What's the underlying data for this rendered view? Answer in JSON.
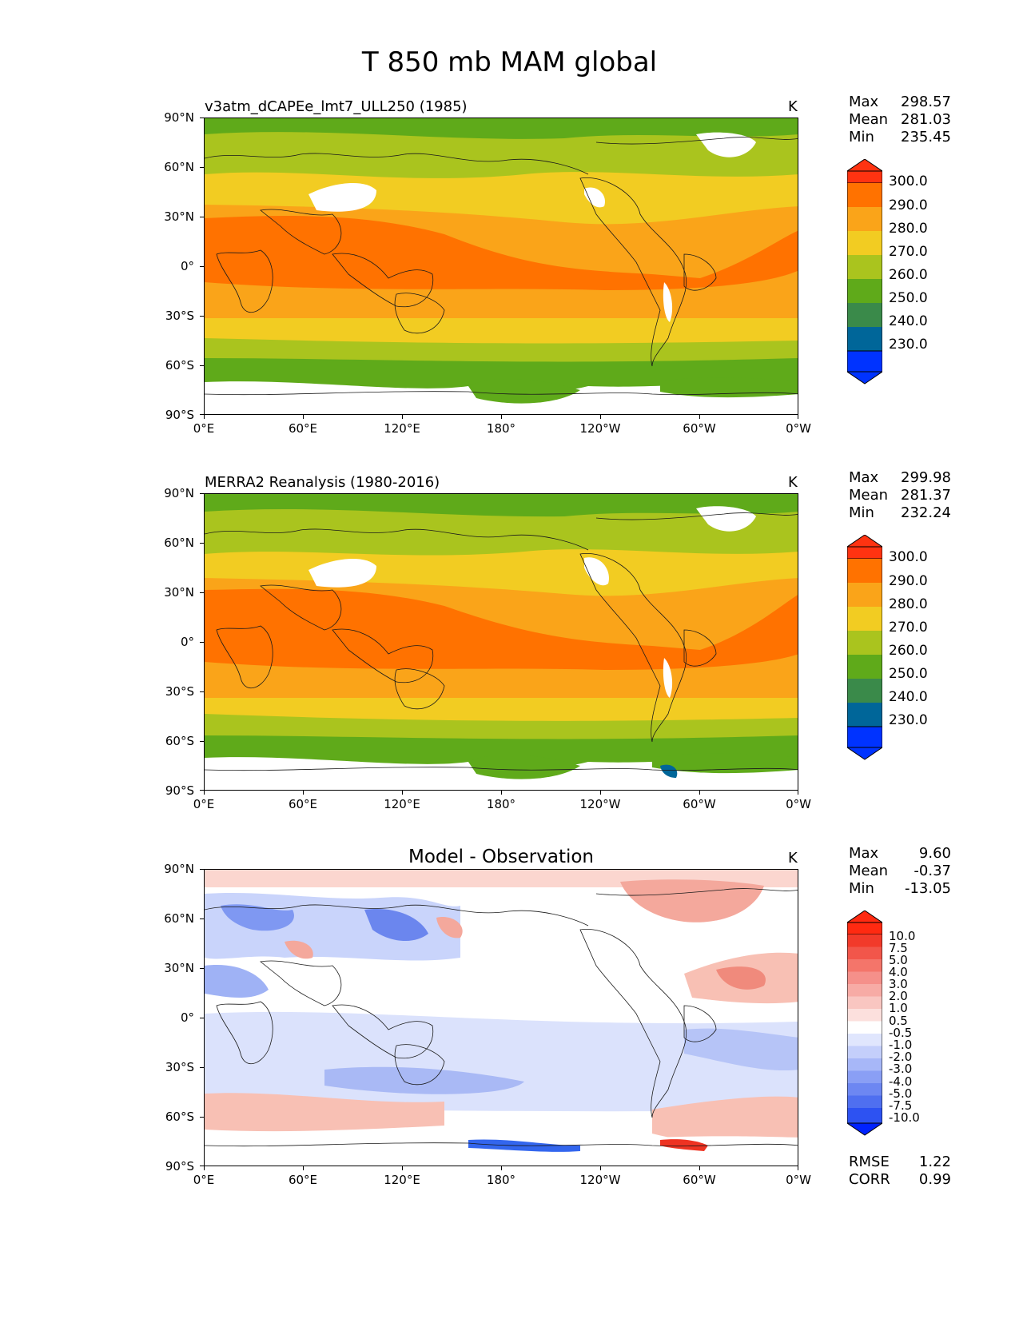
{
  "title": "T 850 mb MAM global",
  "colors": {
    "c220": "#0033ff",
    "c230": "#006699",
    "c240": "#3a8a4a",
    "c250": "#5faa1a",
    "c260": "#aac41e",
    "c270": "#f2cc22",
    "c280": "#faa419",
    "c290": "#ff7200",
    "c300": "#ff3311",
    "missing": "#ffffff",
    "coast": "#1a1a1a"
  },
  "axes": {
    "yticks": [
      "90°N",
      "60°N",
      "30°N",
      "0°",
      "30°S",
      "60°S",
      "90°S"
    ],
    "xticks": [
      "0°E",
      "60°E",
      "120°E",
      "180°",
      "120°W",
      "60°W",
      "0°W"
    ]
  },
  "panels": [
    {
      "id": "model",
      "title": "v3atm_dCAPEe_lmt7_ULL250 (1985)",
      "units": "K",
      "stats": {
        "max_label": "Max",
        "max": "298.57",
        "mean_label": "Mean",
        "mean": "281.03",
        "min_label": "Min",
        "min": "235.45"
      },
      "colorbar_levels": [
        "300.0",
        "290.0",
        "280.0",
        "270.0",
        "260.0",
        "250.0",
        "240.0",
        "230.0"
      ]
    },
    {
      "id": "obs",
      "title": "MERRA2 Reanalysis (1980-2016)",
      "units": "K",
      "stats": {
        "max_label": "Max",
        "max": "299.98",
        "mean_label": "Mean",
        "mean": "281.37",
        "min_label": "Min",
        "min": "232.24"
      },
      "colorbar_levels": [
        "300.0",
        "290.0",
        "280.0",
        "270.0",
        "260.0",
        "250.0",
        "240.0",
        "230.0"
      ]
    },
    {
      "id": "diff",
      "title": "Model - Observation",
      "units": "K",
      "stats": {
        "max_label": "Max",
        "max": "9.60",
        "mean_label": "Mean",
        "mean": "-0.37",
        "min_label": "Min",
        "min": "-13.05"
      },
      "colorbar_levels": [
        "10.0",
        "7.5",
        "5.0",
        "4.0",
        "3.0",
        "2.0",
        "1.0",
        "0.5",
        "-0.5",
        "-1.0",
        "-2.0",
        "-3.0",
        "-4.0",
        "-5.0",
        "-7.5",
        "-10.0"
      ],
      "rmse_label": "RMSE",
      "rmse": "1.22",
      "corr_label": "CORR",
      "corr": "0.99"
    }
  ]
}
